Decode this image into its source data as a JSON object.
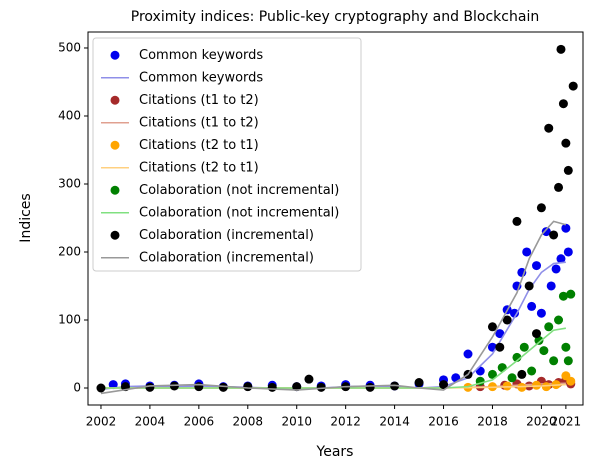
{
  "chart_data": {
    "type": "scatter",
    "title": "Proximity indices: Public-key cryptography and Blockchain",
    "x_label": "Years",
    "y_label": "Indices",
    "xlim": [
      2001.47,
      2021.7
    ],
    "ylim": [
      -25,
      523.5
    ],
    "xticks": [
      2002,
      2004,
      2006,
      2008,
      2010,
      2012,
      2014,
      2016,
      2018,
      2020,
      2021
    ],
    "yticks": [
      0,
      100,
      200,
      300,
      400,
      500
    ],
    "grid": false,
    "legend": "upper left",
    "series": [
      {
        "name": "Common keywords",
        "kind": "scatter",
        "color": "#0000ee",
        "x": [
          2002.5,
          2003,
          2004,
          2005,
          2006,
          2007,
          2008,
          2009,
          2010,
          2011,
          2012,
          2013,
          2014,
          2015,
          2016,
          2016.5,
          2017,
          2017.5,
          2018,
          2018.3,
          2018.6,
          2018.9,
          2019,
          2019.2,
          2019.4,
          2019.6,
          2019.8,
          2020,
          2020.2,
          2020.4,
          2020.6,
          2020.8,
          2021,
          2021.1
        ],
        "values": [
          5,
          6,
          3,
          4,
          6,
          2,
          3,
          4,
          2,
          3,
          5,
          4,
          3,
          6,
          12,
          15,
          50,
          25,
          60,
          80,
          115,
          110,
          150,
          170,
          200,
          120,
          180,
          110,
          230,
          150,
          175,
          190,
          235,
          200
        ]
      },
      {
        "name": "Common keywords",
        "kind": "line",
        "color": "#8f8fe8",
        "x": [
          2002,
          2003,
          2004,
          2005,
          2006,
          2007,
          2008,
          2009,
          2010,
          2011,
          2012,
          2013,
          2014,
          2015,
          2016,
          2017,
          2018,
          2019,
          2019.5,
          2020,
          2020.5,
          2021
        ],
        "values": [
          -2,
          2,
          3,
          2,
          3,
          2,
          1,
          0,
          -1,
          0,
          2,
          3,
          2,
          0,
          2,
          15,
          50,
          110,
          145,
          170,
          183,
          185
        ]
      },
      {
        "name": "Citations (t1 to t2)",
        "kind": "scatter",
        "color": "#a52a2a",
        "x": [
          2017.5,
          2018.5,
          2019,
          2019.5,
          2020,
          2020.3,
          2020.7,
          2021,
          2021.2
        ],
        "values": [
          2,
          4,
          6,
          3,
          10,
          5,
          8,
          12,
          6
        ]
      },
      {
        "name": "Citations (t1 to t2)",
        "kind": "line",
        "color": "#e0a090",
        "x": [
          2002,
          2006,
          2010,
          2014,
          2016,
          2018,
          2019,
          2020,
          2021
        ],
        "values": [
          0,
          0,
          0,
          0,
          0,
          2,
          4,
          6,
          7
        ]
      },
      {
        "name": "Citations (t2 to t1)",
        "kind": "scatter",
        "color": "#ffa500",
        "x": [
          2017,
          2018,
          2018.6,
          2019.2,
          2019.8,
          2020.2,
          2020.6,
          2021,
          2021.2
        ],
        "values": [
          1,
          2,
          3,
          1,
          4,
          2,
          5,
          18,
          10
        ]
      },
      {
        "name": "Citations (t2 to t1)",
        "kind": "line",
        "color": "#ffd080",
        "x": [
          2002,
          2006,
          2010,
          2014,
          2016,
          2018,
          2019,
          2020,
          2021
        ],
        "values": [
          0,
          0,
          0,
          0,
          0,
          1,
          2,
          3,
          5
        ]
      },
      {
        "name": "Colaboration (not incremental)",
        "kind": "scatter",
        "color": "#008000",
        "x": [
          2017.5,
          2018,
          2018.4,
          2018.8,
          2019,
          2019.3,
          2019.6,
          2019.9,
          2020.1,
          2020.3,
          2020.5,
          2020.7,
          2020.9,
          2021,
          2021.1,
          2021.2
        ],
        "values": [
          10,
          20,
          30,
          15,
          45,
          60,
          25,
          70,
          55,
          90,
          40,
          100,
          135,
          60,
          40,
          138
        ]
      },
      {
        "name": "Colaboration (not incremental)",
        "kind": "line",
        "color": "#80e080",
        "x": [
          2002,
          2006,
          2010,
          2014,
          2016,
          2017,
          2018,
          2019,
          2020,
          2020.5,
          2021
        ],
        "values": [
          0,
          0,
          0,
          0,
          0,
          2,
          12,
          40,
          70,
          85,
          88
        ]
      },
      {
        "name": "Colaboration (incremental)",
        "kind": "scatter",
        "color": "#000000",
        "x": [
          2002,
          2003,
          2004,
          2005,
          2006,
          2007,
          2008,
          2009,
          2010,
          2010.5,
          2011,
          2012,
          2013,
          2014,
          2015,
          2016,
          2017,
          2018,
          2018.3,
          2018.6,
          2019,
          2019.2,
          2019.5,
          2019.8,
          2020,
          2020.3,
          2020.5,
          2020.7,
          2020.8,
          2020.9,
          2021,
          2021.1,
          2021.3
        ],
        "values": [
          0,
          2,
          1,
          3,
          2,
          1,
          2,
          1,
          2,
          13,
          1,
          2,
          1,
          3,
          8,
          5,
          20,
          90,
          60,
          100,
          245,
          20,
          150,
          80,
          265,
          382,
          225,
          295,
          498,
          418,
          360,
          320,
          444
        ]
      },
      {
        "name": "Colaboration (incremental)",
        "kind": "line",
        "color": "#999999",
        "x": [
          2002,
          2004,
          2006,
          2008,
          2010,
          2012,
          2014,
          2015,
          2016,
          2017,
          2018,
          2019,
          2019.5,
          2020,
          2020.5,
          2021
        ],
        "values": [
          -8,
          3,
          5,
          0,
          -3,
          2,
          4,
          0,
          -3,
          20,
          75,
          140,
          190,
          225,
          245,
          240
        ]
      }
    ]
  }
}
